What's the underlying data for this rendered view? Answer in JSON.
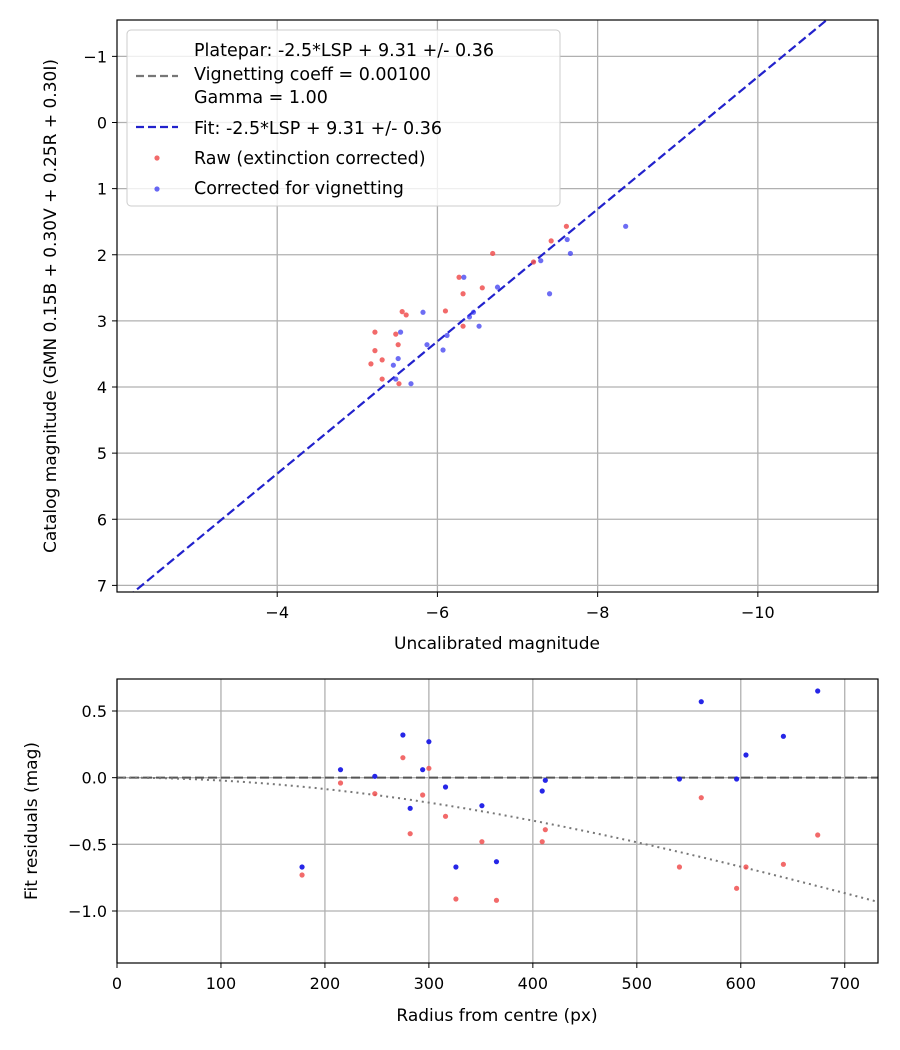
{
  "colors": {
    "raw": "#f05050",
    "corrected": "#3535f0",
    "corrected_bottom": "#1a1ae6",
    "fit": "#2222cc",
    "vignetting": "#777777",
    "zero_line": "#555555",
    "grid": "#b0b0b0"
  },
  "chart_data": [
    {
      "type": "scatter",
      "name": "calibration",
      "xlabel": "Uncalibrated magnitude",
      "ylabel": "Catalog magnitude (GMN 0.15B + 0.30V + 0.25R + 0.30I)",
      "xlim": [
        -2.0,
        -11.5
      ],
      "ylim": [
        7.1,
        -1.55
      ],
      "xticks": [
        -4,
        -6,
        -8,
        -10
      ],
      "xtick_labels": [
        "−4",
        "−6",
        "−8",
        "−10"
      ],
      "yticks": [
        -1,
        0,
        1,
        2,
        3,
        4,
        5,
        6,
        7
      ],
      "ytick_labels": [
        "−1",
        "0",
        "1",
        "2",
        "3",
        "4",
        "5",
        "6",
        "7"
      ],
      "grid": true,
      "legend": {
        "position": "top-left",
        "entries": [
          {
            "kind": "none",
            "label": "Platepar: -2.5*LSP + 9.31 +/- 0.36"
          },
          {
            "kind": "dash-gray",
            "label": "Vignetting coeff = 0.00100"
          },
          {
            "kind": "none",
            "label": "Gamma = 1.00"
          },
          {
            "kind": "dash-blue",
            "label": "Fit: -2.5*LSP + 9.31 +/- 0.36"
          },
          {
            "kind": "dot-red",
            "label": "Raw (extinction corrected)"
          },
          {
            "kind": "dot-blue",
            "label": "Corrected for vignetting"
          }
        ]
      },
      "fit_line": {
        "slope": 1.0,
        "intercept": 9.31,
        "label": "Fit: -2.5*LSP + 9.31 +/- 0.36"
      },
      "series": [
        {
          "name": "Raw (extinction corrected)",
          "points": [
            [
              -7.61,
              1.57
            ],
            [
              -7.42,
              1.79
            ],
            [
              -6.69,
              1.98
            ],
            [
              -7.2,
              2.11
            ],
            [
              -6.27,
              2.34
            ],
            [
              -6.56,
              2.5
            ],
            [
              -6.32,
              2.59
            ],
            [
              -5.56,
              2.86
            ],
            [
              -5.61,
              2.91
            ],
            [
              -6.1,
              2.85
            ],
            [
              -6.32,
              3.08
            ],
            [
              -5.22,
              3.17
            ],
            [
              -5.48,
              3.2
            ],
            [
              -5.51,
              3.36
            ],
            [
              -5.22,
              3.45
            ],
            [
              -5.31,
              3.59
            ],
            [
              -5.17,
              3.65
            ],
            [
              -5.31,
              3.88
            ],
            [
              -5.52,
              3.95
            ]
          ]
        },
        {
          "name": "Corrected for vignetting",
          "points": [
            [
              -8.35,
              1.57
            ],
            [
              -7.62,
              1.77
            ],
            [
              -7.66,
              1.98
            ],
            [
              -7.29,
              2.09
            ],
            [
              -6.33,
              2.34
            ],
            [
              -6.75,
              2.49
            ],
            [
              -7.4,
              2.59
            ],
            [
              -5.82,
              2.87
            ],
            [
              -6.45,
              2.87
            ],
            [
              -6.4,
              2.94
            ],
            [
              -6.52,
              3.08
            ],
            [
              -6.12,
              3.22
            ],
            [
              -5.54,
              3.17
            ],
            [
              -5.87,
              3.36
            ],
            [
              -6.07,
              3.44
            ],
            [
              -5.51,
              3.57
            ],
            [
              -5.45,
              3.67
            ],
            [
              -5.48,
              3.88
            ],
            [
              -5.67,
              3.95
            ]
          ]
        }
      ]
    },
    {
      "type": "scatter",
      "name": "residuals",
      "xlabel": "Radius from centre (px)",
      "ylabel": "Fit residuals (mag)",
      "xlim": [
        0,
        732
      ],
      "ylim": [
        -1.39,
        0.74
      ],
      "xticks": [
        0,
        100,
        200,
        300,
        400,
        500,
        600,
        700
      ],
      "xtick_labels": [
        "0",
        "100",
        "200",
        "300",
        "400",
        "500",
        "600",
        "700"
      ],
      "yticks": [
        0.5,
        0.0,
        -0.5,
        -1.0
      ],
      "ytick_labels": [
        "0.5",
        "0.0",
        "−0.5",
        "−1.0"
      ],
      "grid": true,
      "zero_line": 0.0,
      "vignetting_coeff": 0.001,
      "series": [
        {
          "name": "Raw (extinction corrected)",
          "points": [
            [
              178,
              -0.73
            ],
            [
              215,
              -0.04
            ],
            [
              248,
              -0.12
            ],
            [
              275,
              0.15
            ],
            [
              282,
              -0.42
            ],
            [
              294,
              -0.13
            ],
            [
              300,
              0.07
            ],
            [
              316,
              -0.29
            ],
            [
              326,
              -0.91
            ],
            [
              351,
              -0.48
            ],
            [
              365,
              -0.92
            ],
            [
              409,
              -0.48
            ],
            [
              412,
              -0.39
            ],
            [
              541,
              -0.67
            ],
            [
              562,
              -0.15
            ],
            [
              596,
              -0.83
            ],
            [
              605,
              -0.67
            ],
            [
              641,
              -0.65
            ],
            [
              674,
              -0.43
            ]
          ]
        },
        {
          "name": "Corrected for vignetting",
          "points": [
            [
              178,
              -0.67
            ],
            [
              215,
              0.06
            ],
            [
              248,
              0.01
            ],
            [
              275,
              0.32
            ],
            [
              282,
              -0.23
            ],
            [
              294,
              0.06
            ],
            [
              300,
              0.27
            ],
            [
              316,
              -0.07
            ],
            [
              326,
              -0.67
            ],
            [
              351,
              -0.21
            ],
            [
              365,
              -0.63
            ],
            [
              409,
              -0.1
            ],
            [
              412,
              -0.02
            ],
            [
              541,
              -0.01
            ],
            [
              562,
              0.57
            ],
            [
              596,
              -0.01
            ],
            [
              605,
              0.17
            ],
            [
              641,
              0.31
            ],
            [
              674,
              0.65
            ]
          ]
        }
      ]
    }
  ]
}
